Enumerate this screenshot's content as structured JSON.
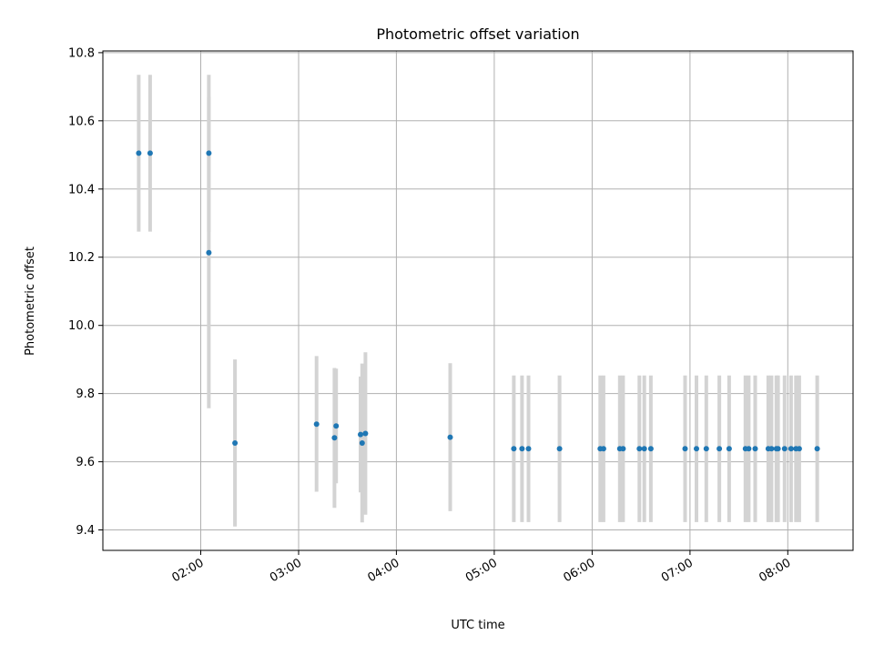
{
  "chart_data": {
    "type": "scatter",
    "title": "Photometric offset variation",
    "xlabel": "UTC time",
    "ylabel": "Photometric offset",
    "xlim": [
      "01:00",
      "08:40"
    ],
    "ylim": [
      9.34,
      10.805
    ],
    "x_ticks": [
      "02:00",
      "03:00",
      "04:00",
      "05:00",
      "06:00",
      "07:00",
      "08:00"
    ],
    "y_ticks": [
      "9.4",
      "9.6",
      "9.8",
      "10.0",
      "10.2",
      "10.4",
      "10.6",
      "10.8"
    ],
    "grid": true,
    "marker_color": "#1f77b4",
    "errorbar_color": "#d3d3d3",
    "points": [
      {
        "x": "01:22",
        "y": 10.505,
        "lo": 10.275,
        "hi": 10.735
      },
      {
        "x": "01:29",
        "y": 10.505,
        "lo": 10.275,
        "hi": 10.735
      },
      {
        "x": "02:05",
        "y": 10.505,
        "lo": 10.275,
        "hi": 10.735
      },
      {
        "x": "02:05",
        "y": 10.213,
        "lo": 9.757,
        "hi": 10.67
      },
      {
        "x": "02:21",
        "y": 9.655,
        "lo": 9.41,
        "hi": 9.9
      },
      {
        "x": "03:11",
        "y": 9.71,
        "lo": 9.512,
        "hi": 9.91
      },
      {
        "x": "03:22",
        "y": 9.67,
        "lo": 9.465,
        "hi": 9.875
      },
      {
        "x": "03:23",
        "y": 9.705,
        "lo": 9.537,
        "hi": 9.873
      },
      {
        "x": "03:38",
        "y": 9.68,
        "lo": 9.51,
        "hi": 9.85
      },
      {
        "x": "03:39",
        "y": 9.655,
        "lo": 9.422,
        "hi": 9.888
      },
      {
        "x": "03:41",
        "y": 9.683,
        "lo": 9.445,
        "hi": 9.921
      },
      {
        "x": "04:33",
        "y": 9.672,
        "lo": 9.455,
        "hi": 9.889
      },
      {
        "x": "05:12",
        "y": 9.638,
        "lo": 9.423,
        "hi": 9.853
      },
      {
        "x": "05:17",
        "y": 9.638,
        "lo": 9.423,
        "hi": 9.853
      },
      {
        "x": "05:21",
        "y": 9.638,
        "lo": 9.423,
        "hi": 9.853
      },
      {
        "x": "05:40",
        "y": 9.638,
        "lo": 9.423,
        "hi": 9.853
      },
      {
        "x": "06:05",
        "y": 9.638,
        "lo": 9.423,
        "hi": 9.853
      },
      {
        "x": "06:07",
        "y": 9.638,
        "lo": 9.423,
        "hi": 9.853
      },
      {
        "x": "06:17",
        "y": 9.638,
        "lo": 9.423,
        "hi": 9.853
      },
      {
        "x": "06:19",
        "y": 9.638,
        "lo": 9.423,
        "hi": 9.853
      },
      {
        "x": "06:29",
        "y": 9.638,
        "lo": 9.423,
        "hi": 9.853
      },
      {
        "x": "06:32",
        "y": 9.638,
        "lo": 9.423,
        "hi": 9.853
      },
      {
        "x": "06:36",
        "y": 9.638,
        "lo": 9.423,
        "hi": 9.853
      },
      {
        "x": "06:57",
        "y": 9.638,
        "lo": 9.423,
        "hi": 9.853
      },
      {
        "x": "07:04",
        "y": 9.638,
        "lo": 9.423,
        "hi": 9.853
      },
      {
        "x": "07:10",
        "y": 9.638,
        "lo": 9.423,
        "hi": 9.853
      },
      {
        "x": "07:18",
        "y": 9.638,
        "lo": 9.423,
        "hi": 9.853
      },
      {
        "x": "07:24",
        "y": 9.638,
        "lo": 9.423,
        "hi": 9.853
      },
      {
        "x": "07:34",
        "y": 9.638,
        "lo": 9.423,
        "hi": 9.853
      },
      {
        "x": "07:36",
        "y": 9.638,
        "lo": 9.423,
        "hi": 9.853
      },
      {
        "x": "07:40",
        "y": 9.638,
        "lo": 9.423,
        "hi": 9.853
      },
      {
        "x": "07:48",
        "y": 9.638,
        "lo": 9.423,
        "hi": 9.853
      },
      {
        "x": "07:50",
        "y": 9.638,
        "lo": 9.423,
        "hi": 9.853
      },
      {
        "x": "07:53",
        "y": 9.638,
        "lo": 9.423,
        "hi": 9.853
      },
      {
        "x": "07:54",
        "y": 9.638,
        "lo": 9.423,
        "hi": 9.853
      },
      {
        "x": "07:58",
        "y": 9.638,
        "lo": 9.423,
        "hi": 9.853
      },
      {
        "x": "08:02",
        "y": 9.638,
        "lo": 9.423,
        "hi": 9.853
      },
      {
        "x": "08:05",
        "y": 9.638,
        "lo": 9.423,
        "hi": 9.853
      },
      {
        "x": "08:07",
        "y": 9.638,
        "lo": 9.423,
        "hi": 9.853
      },
      {
        "x": "08:18",
        "y": 9.638,
        "lo": 9.423,
        "hi": 9.853
      }
    ]
  }
}
